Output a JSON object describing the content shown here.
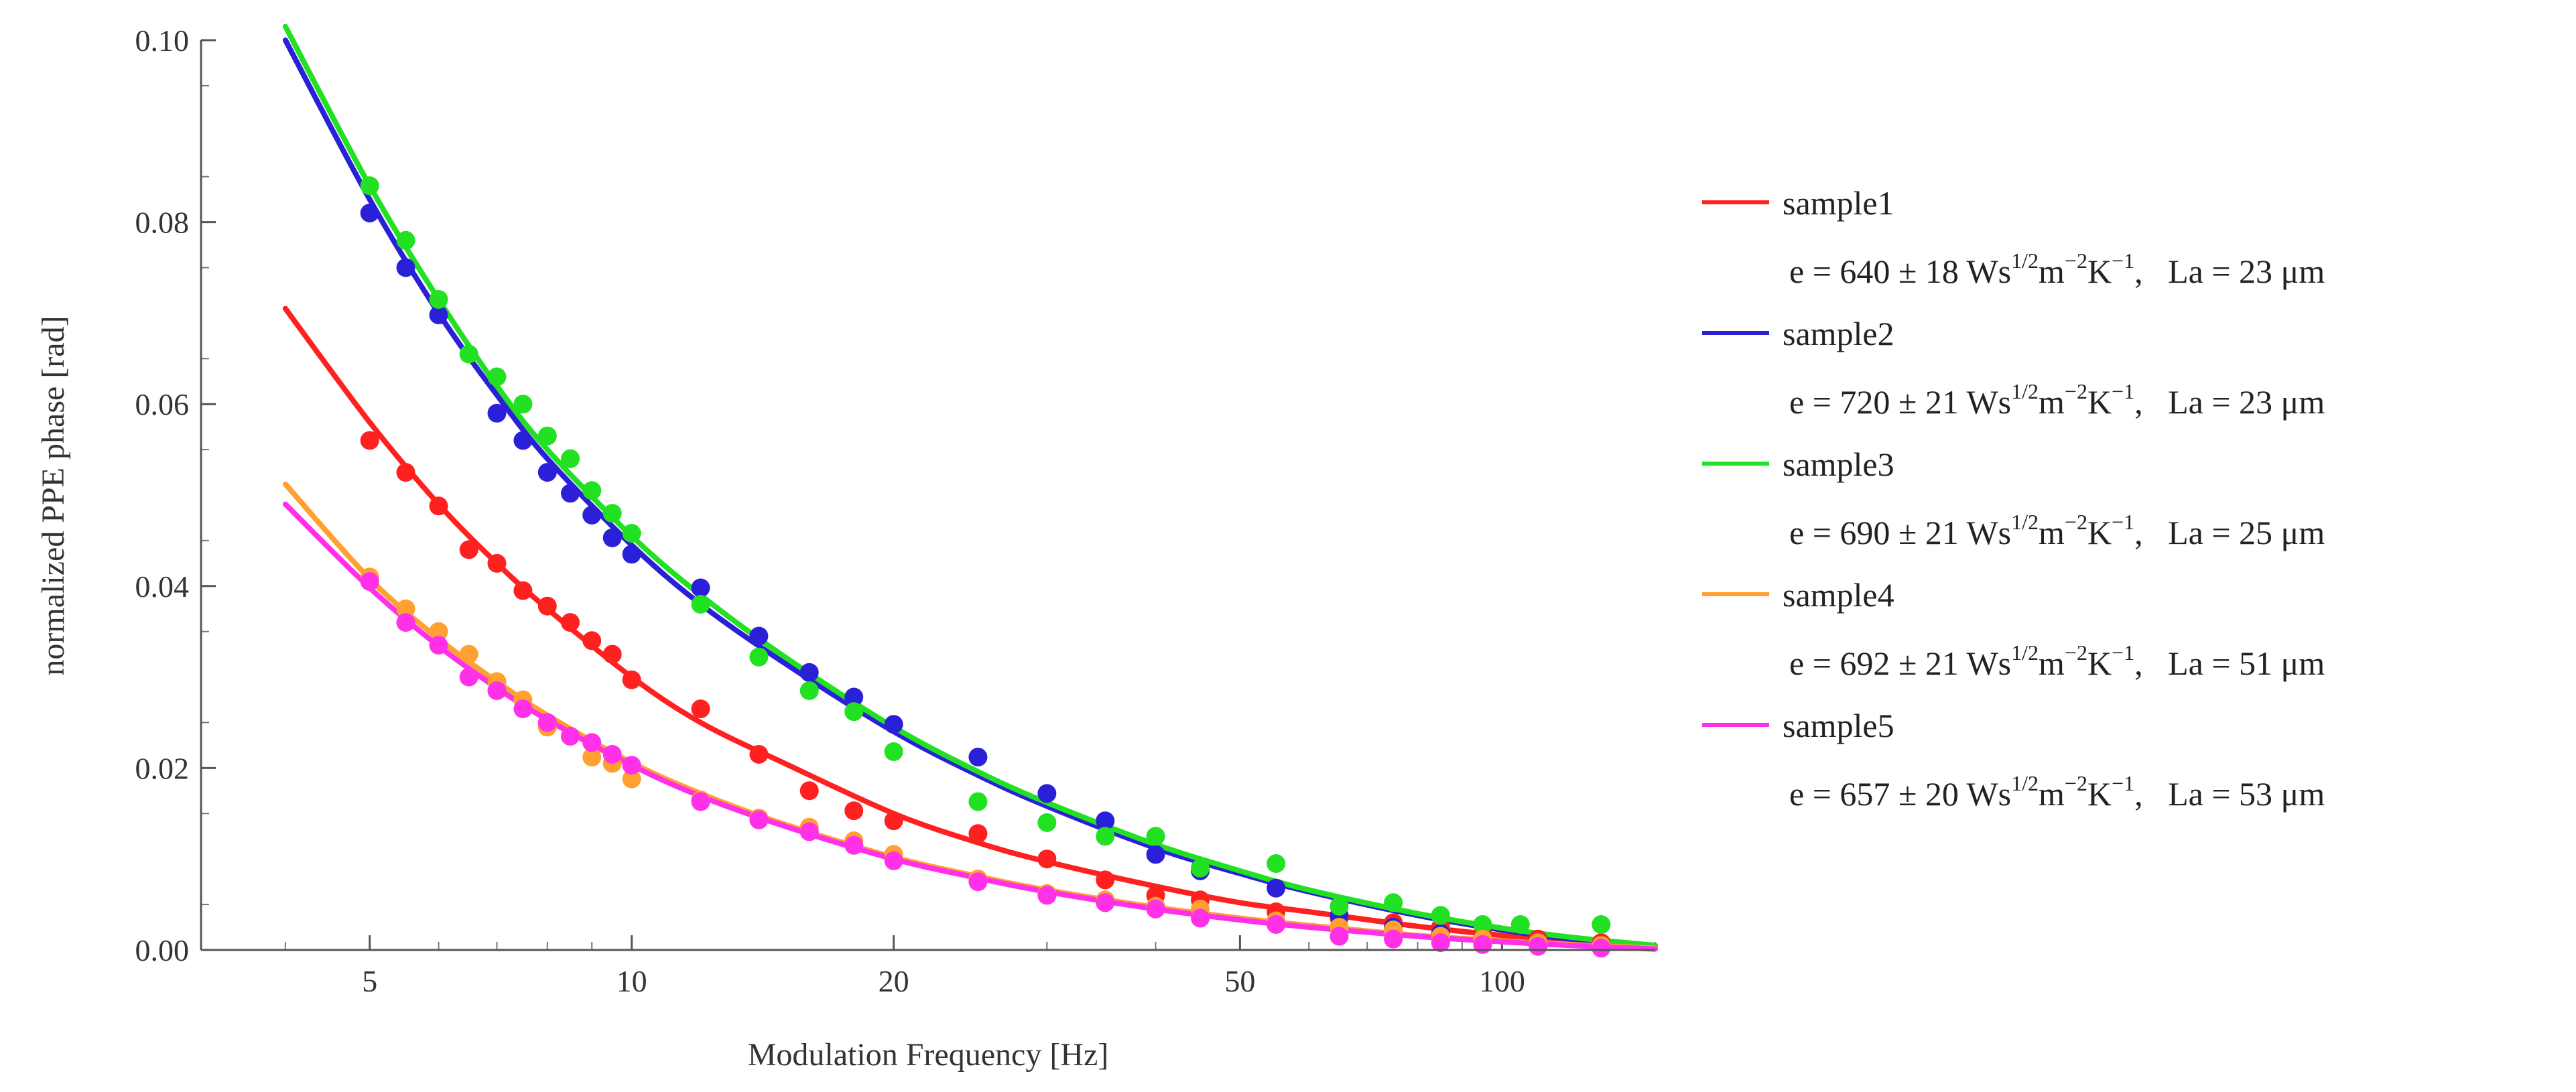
{
  "chart_data": {
    "type": "scatter",
    "title": "",
    "xlabel": "Modulation Frequency [Hz]",
    "ylabel": "normalized PPE phase  [rad]",
    "xscale": "log",
    "xlim": [
      3.2,
      150
    ],
    "ylim": [
      0,
      0.1
    ],
    "xticks": [
      5,
      10,
      20,
      50,
      100
    ],
    "xtick_labels": [
      "5",
      "10",
      "20",
      "50",
      "100"
    ],
    "yticks": [
      0,
      0.02,
      0.04,
      0.06,
      0.08,
      0.1
    ],
    "ytick_labels": [
      "0.00",
      "0.02",
      "0.04",
      "0.06",
      "0.08",
      "0.10"
    ],
    "legend_position": "right",
    "series": [
      {
        "name": "sample1",
        "color": "#ff2020",
        "legend": {
          "e_value": "640",
          "e_err": "18",
          "La_value": "23"
        },
        "fit_x": [
          4,
          5,
          6,
          7,
          8,
          10,
          12,
          15,
          20,
          25,
          30,
          40,
          50,
          60,
          80,
          100,
          120,
          150
        ],
        "fit_y": [
          0.0705,
          0.058,
          0.049,
          0.0425,
          0.0375,
          0.03,
          0.025,
          0.0205,
          0.015,
          0.0118,
          0.0097,
          0.007,
          0.0052,
          0.0042,
          0.0026,
          0.0016,
          0.001,
          0.0003
        ],
        "x": [
          5,
          5.5,
          6,
          6.5,
          7,
          7.5,
          8,
          8.5,
          9,
          9.5,
          10,
          12,
          14,
          16,
          18,
          20,
          25,
          30,
          35,
          40,
          45,
          55,
          65,
          75,
          85,
          95,
          110,
          130
        ],
        "y": [
          0.056,
          0.0525,
          0.0488,
          0.044,
          0.0425,
          0.0395,
          0.0378,
          0.036,
          0.034,
          0.0325,
          0.0297,
          0.0265,
          0.0215,
          0.0175,
          0.0153,
          0.0142,
          0.0128,
          0.01,
          0.0077,
          0.006,
          0.0055,
          0.0042,
          0.0035,
          0.003,
          0.0025,
          0.0018,
          0.0012,
          0.0008
        ]
      },
      {
        "name": "sample2",
        "color": "#2a20d8",
        "legend": {
          "e_value": "720",
          "e_err": "21",
          "La_value": "23"
        },
        "fit_x": [
          4,
          5,
          6,
          7,
          8,
          10,
          12,
          15,
          20,
          25,
          30,
          40,
          50,
          60,
          80,
          100,
          120,
          150
        ],
        "fit_y": [
          0.1,
          0.0825,
          0.07,
          0.061,
          0.054,
          0.0445,
          0.038,
          0.0315,
          0.024,
          0.0192,
          0.0158,
          0.0112,
          0.0084,
          0.0064,
          0.0038,
          0.0022,
          0.0012,
          0.0004
        ],
        "x": [
          5,
          5.5,
          6,
          7,
          7.5,
          8,
          8.5,
          9,
          9.5,
          10,
          12,
          14,
          16,
          18,
          20,
          25,
          30,
          35,
          40,
          45,
          55,
          65,
          75,
          85,
          95,
          110,
          130
        ],
        "y": [
          0.081,
          0.075,
          0.0698,
          0.059,
          0.056,
          0.0525,
          0.0502,
          0.0478,
          0.0453,
          0.0435,
          0.0398,
          0.0345,
          0.0305,
          0.0278,
          0.0248,
          0.0212,
          0.0172,
          0.0142,
          0.0105,
          0.0087,
          0.0068,
          0.0038,
          0.0025,
          0.0018,
          0.0012,
          0.0008,
          0.0005
        ]
      },
      {
        "name": "sample3",
        "color": "#22e022",
        "legend": {
          "e_value": "690",
          "e_err": "21",
          "La_value": "25"
        },
        "fit_x": [
          4,
          5,
          6,
          7,
          8,
          10,
          12,
          15,
          20,
          25,
          30,
          40,
          50,
          60,
          80,
          100,
          120,
          150
        ],
        "fit_y": [
          0.1015,
          0.084,
          0.0715,
          0.062,
          0.055,
          0.0455,
          0.039,
          0.0322,
          0.0245,
          0.0196,
          0.0162,
          0.0116,
          0.0087,
          0.0066,
          0.004,
          0.0024,
          0.0014,
          0.0005
        ],
        "x": [
          5,
          5.5,
          6,
          6.5,
          7,
          7.5,
          8,
          8.5,
          9,
          9.5,
          10,
          12,
          14,
          16,
          18,
          20,
          25,
          30,
          35,
          40,
          45,
          55,
          65,
          75,
          85,
          95,
          105,
          130
        ],
        "y": [
          0.084,
          0.078,
          0.0715,
          0.0655,
          0.063,
          0.06,
          0.0565,
          0.054,
          0.0505,
          0.048,
          0.0458,
          0.038,
          0.0322,
          0.0285,
          0.0262,
          0.0218,
          0.0163,
          0.014,
          0.0125,
          0.0125,
          0.009,
          0.0095,
          0.0048,
          0.0052,
          0.0038,
          0.0028,
          0.0028,
          0.0028
        ]
      },
      {
        "name": "sample4",
        "color": "#ffa030",
        "legend": {
          "e_value": "692",
          "e_err": "21",
          "La_value": "51"
        },
        "fit_x": [
          4,
          5,
          6,
          7,
          8,
          10,
          12,
          15,
          20,
          25,
          30,
          40,
          50,
          60,
          80,
          100,
          120,
          150
        ],
        "fit_y": [
          0.0512,
          0.0408,
          0.0342,
          0.0295,
          0.0258,
          0.0206,
          0.0172,
          0.0138,
          0.0102,
          0.0081,
          0.0066,
          0.0047,
          0.0035,
          0.0027,
          0.0016,
          0.001,
          0.0006,
          0.0002
        ],
        "x": [
          5,
          5.5,
          6,
          6.5,
          7,
          7.5,
          8,
          8.5,
          9,
          9.5,
          10,
          12,
          14,
          16,
          18,
          20,
          25,
          30,
          35,
          40,
          45,
          55,
          65,
          75,
          85,
          95,
          110,
          130
        ],
        "y": [
          0.041,
          0.0375,
          0.035,
          0.0325,
          0.0295,
          0.0275,
          0.0245,
          0.0235,
          0.0212,
          0.0205,
          0.0188,
          0.0165,
          0.0145,
          0.0135,
          0.012,
          0.0105,
          0.0078,
          0.0062,
          0.0055,
          0.0048,
          0.0045,
          0.0032,
          0.0025,
          0.0022,
          0.0015,
          0.0012,
          0.0008,
          0.0005
        ]
      },
      {
        "name": "sample5",
        "color": "#ff30e8",
        "legend": {
          "e_value": "657",
          "e_err": "20",
          "La_value": "53"
        },
        "fit_x": [
          4,
          5,
          6,
          7,
          8,
          10,
          12,
          15,
          20,
          25,
          30,
          40,
          50,
          60,
          80,
          100,
          120,
          150
        ],
        "fit_y": [
          0.049,
          0.0398,
          0.0334,
          0.0288,
          0.0253,
          0.0203,
          0.0169,
          0.0136,
          0.01,
          0.0079,
          0.0064,
          0.0045,
          0.0033,
          0.0025,
          0.0015,
          0.0009,
          0.0005,
          0.0001
        ],
        "x": [
          5,
          5.5,
          6,
          6.5,
          7,
          7.5,
          8,
          8.5,
          9,
          9.5,
          10,
          12,
          14,
          16,
          18,
          20,
          25,
          30,
          35,
          40,
          45,
          55,
          65,
          75,
          85,
          95,
          110,
          130
        ],
        "y": [
          0.0405,
          0.036,
          0.0335,
          0.03,
          0.0285,
          0.0265,
          0.025,
          0.0235,
          0.0228,
          0.0215,
          0.0203,
          0.0163,
          0.0143,
          0.013,
          0.0115,
          0.0098,
          0.0075,
          0.006,
          0.0052,
          0.0045,
          0.0035,
          0.0028,
          0.0015,
          0.0012,
          0.0008,
          0.0006,
          0.0004,
          0.0002
        ]
      }
    ]
  },
  "legend_text": {
    "e_prefix": "e = ",
    "pm": "±",
    "unit_ws": "Ws",
    "sup_half": "1/2",
    "unit_m": "m",
    "sup_m": "−2",
    "unit_k": "K",
    "sup_k": "−1",
    "sep": ",",
    "la_prefix": "La = ",
    "la_unit": "μm"
  }
}
